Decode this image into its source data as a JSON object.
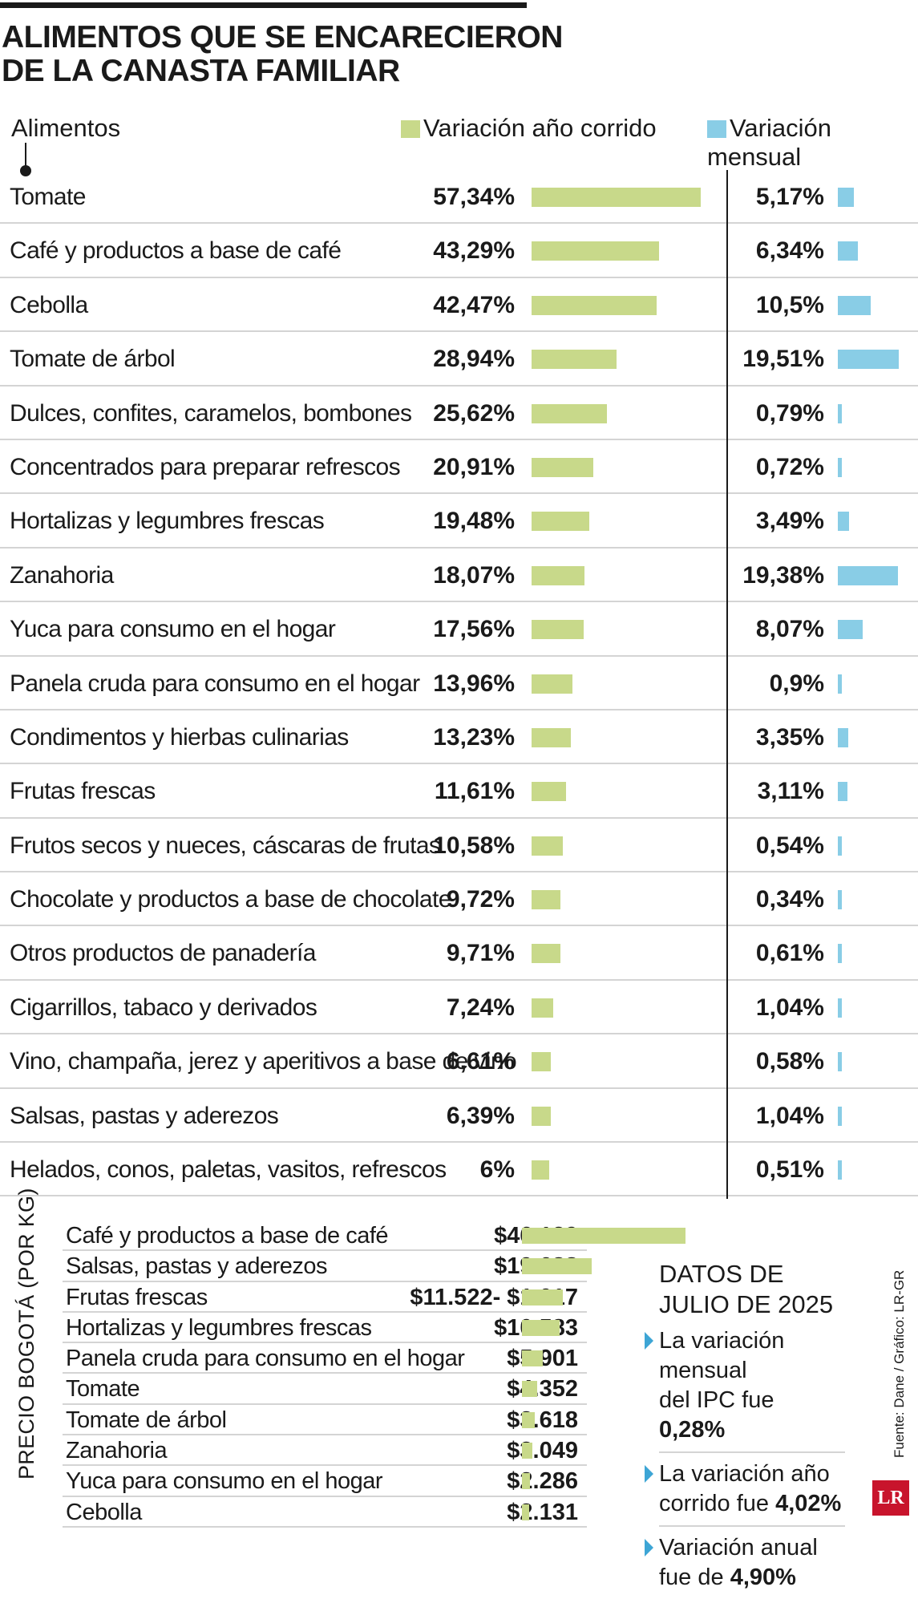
{
  "title_line1": "ALIMENTOS QUE SE ENCARECIERON",
  "title_line2": "DE LA CANASTA FAMILIAR",
  "colors": {
    "ytd": "#c8d98a",
    "monthly": "#89cde6",
    "accent": "#3da5d5",
    "logo": "#c8142c"
  },
  "chart_data": [
    {
      "type": "bar",
      "header_label": "Alimentos",
      "series": [
        {
          "name": "Variación año corrido",
          "labels": [
            "57,34%",
            "43,29%",
            "42,47%",
            "28,94%",
            "25,62%",
            "20,91%",
            "19,48%",
            "18,07%",
            "17,56%",
            "13,96%",
            "13,23%",
            "11,61%",
            "10,58%",
            "9,72%",
            "9,71%",
            "7,24%",
            "6,61%",
            "6,39%",
            "6%"
          ],
          "values": [
            57.34,
            43.29,
            42.47,
            28.94,
            25.62,
            20.91,
            19.48,
            18.07,
            17.56,
            13.96,
            13.23,
            11.61,
            10.58,
            9.72,
            9.71,
            7.24,
            6.61,
            6.39,
            6
          ]
        },
        {
          "name": "Variación mensual",
          "labels": [
            "5,17%",
            "6,34%",
            "10,5%",
            "19,51%",
            "0,79%",
            "0,72%",
            "3,49%",
            "19,38%",
            "8,07%",
            "0,9%",
            "3,35%",
            "3,11%",
            "0,54%",
            "0,34%",
            "0,61%",
            "1,04%",
            "0,58%",
            "1,04%",
            "0,51%"
          ],
          "values": [
            5.17,
            6.34,
            10.5,
            19.51,
            0.79,
            0.72,
            3.49,
            19.38,
            8.07,
            0.9,
            3.35,
            3.11,
            0.54,
            0.34,
            0.61,
            1.04,
            0.58,
            1.04,
            0.51
          ]
        }
      ],
      "categories": [
        "Tomate",
        "Café y productos a base de café",
        "Cebolla",
        "Tomate de árbol",
        "Dulces, confites, caramelos, bombones",
        "Concentrados para preparar refrescos",
        "Hortalizas y legumbres frescas",
        "Zanahoria",
        "Yuca para consumo en el hogar",
        "Panela cruda para consumo en el hogar",
        "Condimentos y hierbas culinarias",
        "Frutas frescas",
        "Frutos secos y nueces, cáscaras de frutas",
        "Chocolate y productos a base de chocolate",
        "Otros productos de panadería",
        "Cigarrillos, tabaco y derivados",
        "Vino, champaña, jerez y aperitivos a base de vino",
        "Salsas, pastas y aderezos",
        "Helados, conos, paletas, vasitos, refrescos"
      ],
      "legend": "top"
    },
    {
      "type": "bar",
      "axis_label": "PRECIO BOGOTÁ (POR KG)",
      "categories": [
        "Café y productos a base de café",
        "Salsas, pastas y aderezos",
        "Frutas frescas",
        "Hortalizas y legumbres frescas",
        "Panela cruda para consumo en el hogar",
        "Tomate",
        "Tomate de árbol",
        "Zanahoria",
        "Yuca para consumo en el hogar",
        "Cebolla"
      ],
      "labels": [
        "$46.129",
        "$19.688",
        "$11.522- $1.017",
        "$10.583",
        "$5.901",
        "$4.352",
        "$3.618",
        "$3.049",
        "$2.286",
        "$2.131"
      ],
      "values": [
        46129,
        19688,
        11522,
        10583,
        5901,
        4352,
        3618,
        3049,
        2286,
        2131
      ]
    }
  ],
  "facts": {
    "title_line1": "DATOS DE",
    "title_line2": "JULIO DE 2025",
    "items": [
      {
        "line1": "La variación mensual",
        "line2": "del IPC fue ",
        "value": "0,28%"
      },
      {
        "line1": "La variación año",
        "line2": "corrido fue ",
        "value": "4,02%"
      },
      {
        "line1": "Variación anual",
        "line2": "fue de ",
        "value": "4,90%"
      }
    ]
  },
  "source": "Fuente: Dane / Gráfico: LR-GR",
  "logo_text": "LR"
}
